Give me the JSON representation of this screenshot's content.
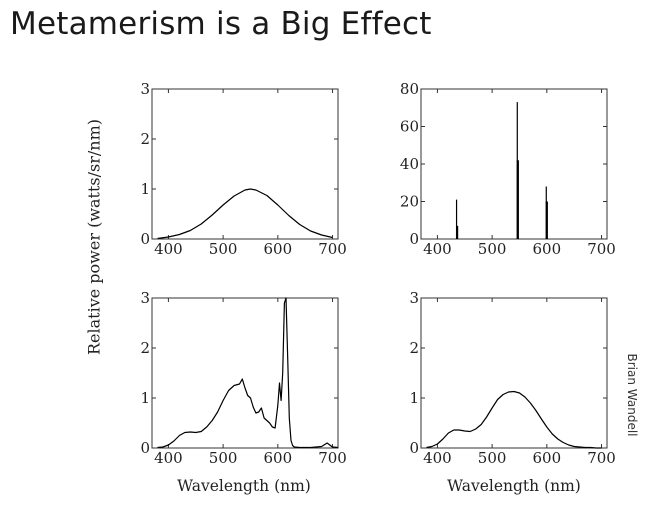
{
  "title": "Metamerism is a Big Effect",
  "y_axis_label": "Relative power (watts/sr/nm)",
  "credit": "Brian Wandell",
  "colors": {
    "line": "#000000",
    "frame": "#333333",
    "text": "#222222"
  },
  "chart_data": [
    {
      "type": "line",
      "title": "",
      "xlabel": "",
      "ylabel": "",
      "xlim": [
        370,
        710
      ],
      "ylim": [
        0,
        3
      ],
      "xticks": [
        400,
        500,
        600,
        700
      ],
      "yticks": [
        0,
        1,
        2,
        3
      ],
      "grid": false,
      "series": [
        {
          "x": [
            380,
            400,
            420,
            440,
            460,
            480,
            500,
            520,
            540,
            550,
            560,
            580,
            600,
            620,
            640,
            660,
            680,
            700
          ],
          "y": [
            0.01,
            0.04,
            0.09,
            0.17,
            0.3,
            0.48,
            0.68,
            0.86,
            0.98,
            1.0,
            0.98,
            0.87,
            0.68,
            0.47,
            0.29,
            0.16,
            0.08,
            0.03
          ]
        }
      ]
    },
    {
      "type": "bar",
      "title": "",
      "xlabel": "",
      "ylabel": "",
      "xlim": [
        370,
        710
      ],
      "ylim": [
        0,
        80
      ],
      "xticks": [
        400,
        500,
        600,
        700
      ],
      "yticks": [
        0,
        20,
        40,
        60,
        80
      ],
      "grid": false,
      "series": [
        {
          "x": [
            435,
            546,
            599
          ],
          "y": [
            21,
            73,
            28
          ]
        },
        {
          "x": [
            436,
            547,
            600
          ],
          "y": [
            7,
            42,
            20
          ]
        }
      ]
    },
    {
      "type": "line",
      "title": "",
      "xlabel": "Wavelength (nm)",
      "ylabel": "",
      "xlim": [
        370,
        710
      ],
      "ylim": [
        0,
        3
      ],
      "xticks": [
        400,
        500,
        600,
        700
      ],
      "yticks": [
        0,
        1,
        2,
        3
      ],
      "grid": false,
      "series": [
        {
          "x": [
            380,
            390,
            400,
            410,
            420,
            430,
            440,
            450,
            460,
            470,
            480,
            490,
            500,
            510,
            520,
            530,
            535,
            540,
            545,
            550,
            555,
            560,
            565,
            570,
            575,
            580,
            585,
            590,
            595,
            600,
            603,
            606,
            609,
            612,
            615,
            618,
            621,
            624,
            627,
            630,
            640,
            660,
            680,
            690,
            700,
            710
          ],
          "y": [
            0.01,
            0.02,
            0.06,
            0.14,
            0.25,
            0.31,
            0.32,
            0.31,
            0.33,
            0.42,
            0.55,
            0.72,
            0.95,
            1.15,
            1.25,
            1.28,
            1.38,
            1.2,
            1.05,
            1.0,
            0.82,
            0.7,
            0.72,
            0.8,
            0.6,
            0.55,
            0.5,
            0.42,
            0.4,
            0.85,
            1.3,
            0.95,
            1.5,
            2.9,
            3.0,
            1.8,
            0.6,
            0.15,
            0.05,
            0.02,
            0.01,
            0.01,
            0.03,
            0.1,
            0.02,
            0.01
          ]
        }
      ]
    },
    {
      "type": "line",
      "title": "",
      "xlabel": "Wavelength (nm)",
      "ylabel": "",
      "xlim": [
        370,
        710
      ],
      "ylim": [
        0,
        3
      ],
      "xticks": [
        400,
        500,
        600,
        700
      ],
      "yticks": [
        0,
        1,
        2,
        3
      ],
      "grid": false,
      "series": [
        {
          "x": [
            380,
            390,
            400,
            410,
            420,
            430,
            440,
            450,
            460,
            470,
            480,
            490,
            500,
            510,
            520,
            530,
            540,
            550,
            560,
            570,
            580,
            590,
            600,
            610,
            620,
            630,
            640,
            650,
            660,
            670,
            680,
            690,
            700
          ],
          "y": [
            0.01,
            0.03,
            0.08,
            0.18,
            0.3,
            0.36,
            0.36,
            0.34,
            0.33,
            0.38,
            0.47,
            0.62,
            0.8,
            0.97,
            1.07,
            1.12,
            1.13,
            1.1,
            1.02,
            0.9,
            0.75,
            0.58,
            0.42,
            0.28,
            0.18,
            0.11,
            0.06,
            0.03,
            0.02,
            0.01,
            0.01,
            0.0,
            0.0
          ]
        }
      ]
    }
  ]
}
